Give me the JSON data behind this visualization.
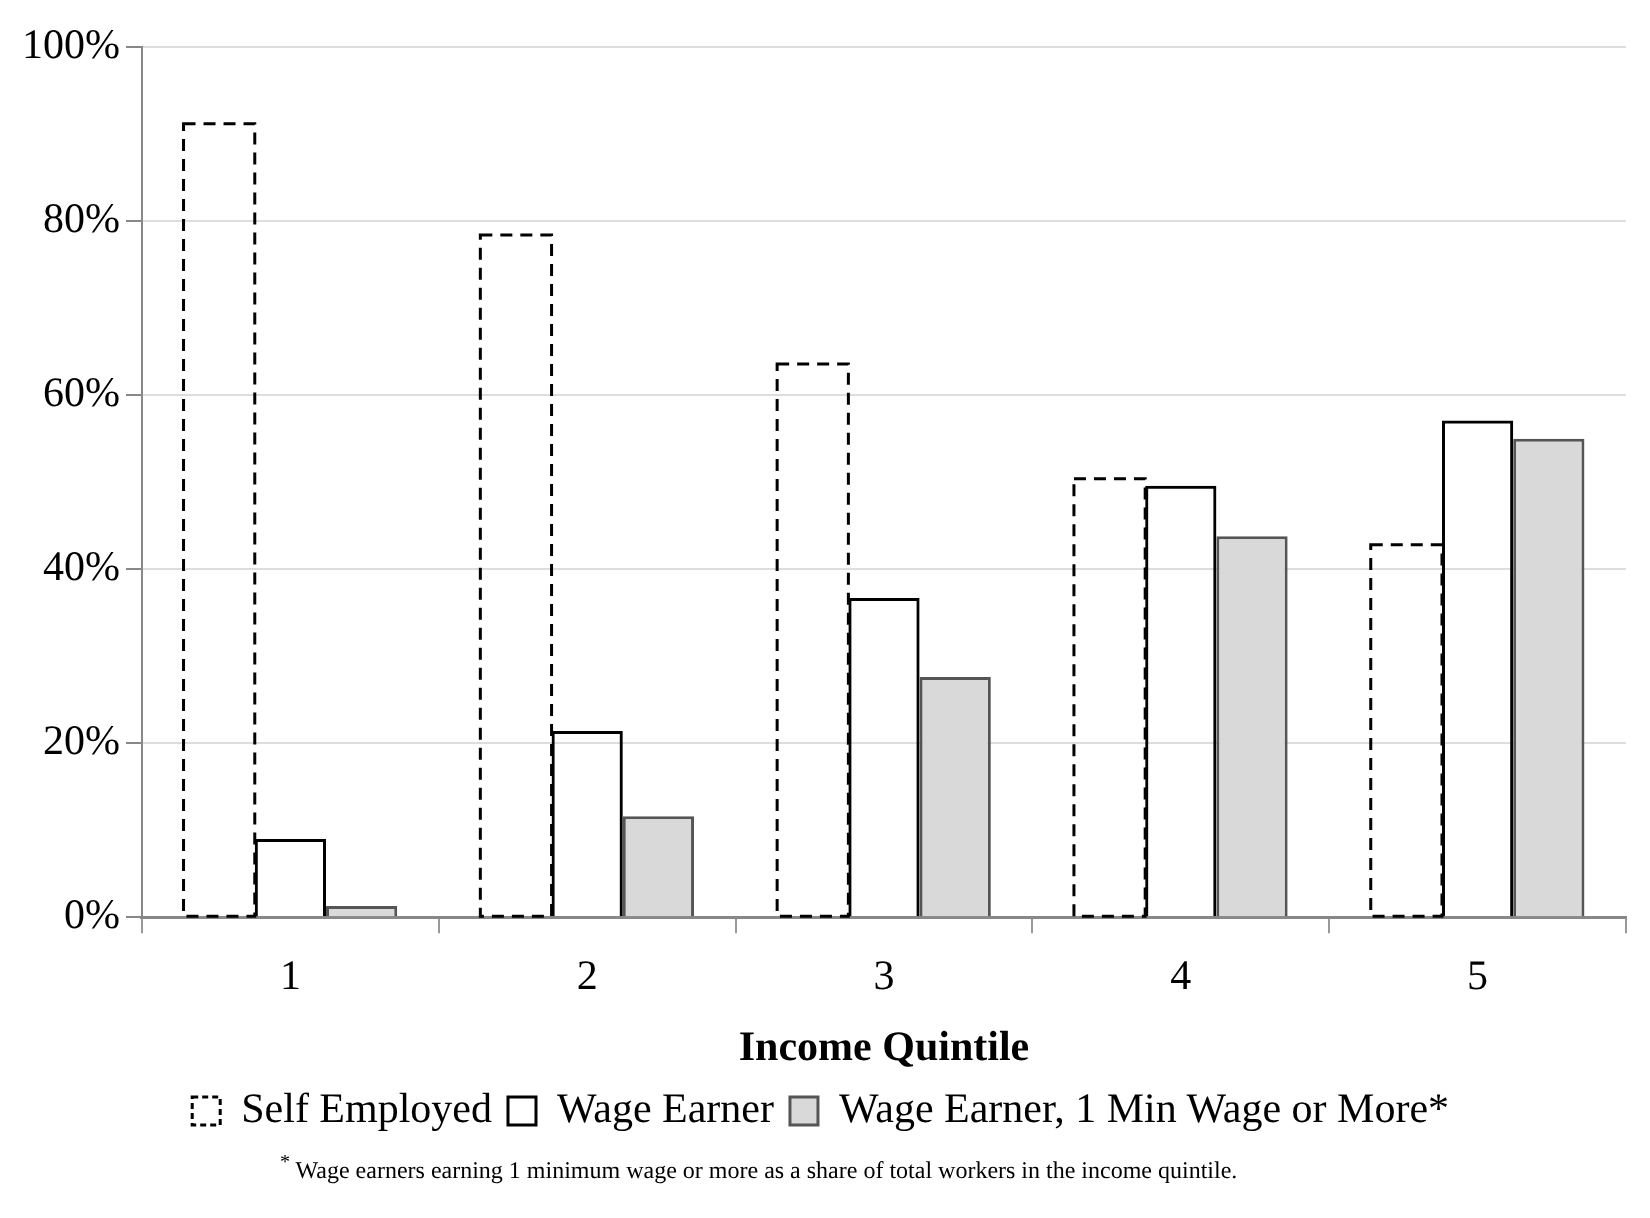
{
  "chart_data": {
    "type": "bar",
    "xlabel": "Income Quintile",
    "categories": [
      "1",
      "2",
      "3",
      "4",
      "5"
    ],
    "series": [
      {
        "name": "Self Employed",
        "color": "#000000",
        "line_style": "dashed",
        "values": [
          91.2,
          78.4,
          63.6,
          50.4,
          42.8
        ]
      },
      {
        "name": "Wage Earner",
        "color": "#000000",
        "line_style": "solid",
        "values": [
          9.0,
          21.4,
          36.7,
          49.6,
          57.1
        ]
      },
      {
        "name": "Wage Earner, 1 Min Wage or More*",
        "color": "#d9d9d9",
        "values": [
          1.3,
          11.6,
          27.6,
          43.8,
          55.0
        ]
      }
    ],
    "ylim": [
      0,
      100
    ],
    "yticks": [
      {
        "value": 0,
        "label": "0%"
      },
      {
        "value": 20,
        "label": "20%"
      },
      {
        "value": 40,
        "label": "40%"
      },
      {
        "value": 60,
        "label": "60%"
      },
      {
        "value": 80,
        "label": "80%"
      },
      {
        "value": 100,
        "label": "100%"
      }
    ],
    "grid": "y",
    "legend": "bottom",
    "annotations": [
      "$^{*}$ Wage earners earning 1 minimum wage or more as a share of total workers in the income quintile."
    ]
  }
}
